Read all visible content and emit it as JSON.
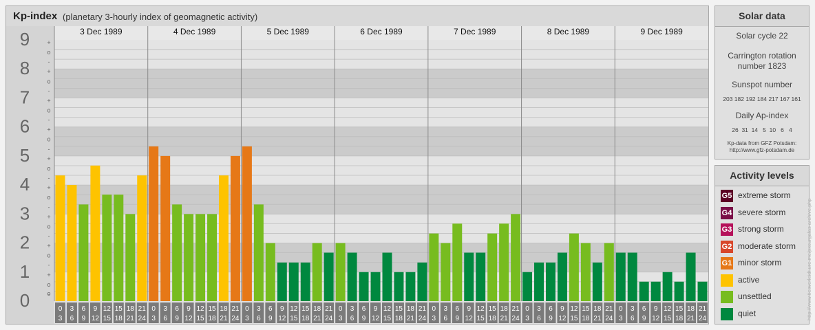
{
  "title": "Kp-index",
  "subtitle": "(planetary 3-hourly index of geomagnetic activity)",
  "chart_data": {
    "type": "bar",
    "y_range": [
      0,
      9
    ],
    "y_labels": [
      "0",
      "1",
      "2",
      "3",
      "4",
      "5",
      "6",
      "7",
      "8",
      "9"
    ],
    "y_minor_labels": [
      "+",
      "o",
      "-"
    ],
    "days": [
      "3 Dec 1989",
      "4 Dec 1989",
      "5 Dec 1989",
      "6 Dec 1989",
      "7 Dec 1989",
      "8 Dec 1989",
      "9 Dec 1989"
    ],
    "interval_top": [
      "0",
      "3",
      "6",
      "9",
      "12",
      "15",
      "18",
      "21"
    ],
    "interval_bottom": [
      "3",
      "6",
      "9",
      "12",
      "15",
      "18",
      "21",
      "24"
    ],
    "values": [
      [
        4.33,
        4.0,
        3.33,
        4.67,
        3.67,
        3.67,
        3.0,
        4.33
      ],
      [
        5.33,
        5.0,
        3.33,
        3.0,
        3.0,
        3.0,
        4.33,
        5.0
      ],
      [
        5.33,
        3.33,
        2.0,
        1.33,
        1.33,
        1.33,
        2.0,
        1.67
      ],
      [
        2.0,
        1.67,
        1.0,
        1.0,
        1.67,
        1.0,
        1.0,
        1.33
      ],
      [
        2.33,
        2.0,
        2.67,
        1.67,
        1.67,
        2.33,
        2.67,
        3.0
      ],
      [
        1.0,
        1.33,
        1.33,
        1.67,
        2.33,
        2.0,
        1.33,
        2.0
      ],
      [
        1.67,
        1.67,
        0.67,
        0.67,
        1.0,
        0.67,
        1.67,
        0.67
      ]
    ],
    "colors": {
      "quiet": "#00883f",
      "unsettled": "#77bc1f",
      "active": "#fec300",
      "minor": "#e67817"
    }
  },
  "solar": {
    "heading": "Solar data",
    "cycle": "Solar cycle 22",
    "carrington_line1": "Carrington rotation",
    "carrington_line2": "number 1823",
    "sunspot_heading": "Sunspot number",
    "sunspot_values": "203 182 192 184 217 167 161",
    "ap_heading": "Daily Ap-index",
    "ap_values": "26  31  14   5  10   6   4",
    "source_line1": "Kp-data from GFZ Potsdam:",
    "source_line2": "http://www.gfz-potsdam.de"
  },
  "activity": {
    "heading": "Activity levels",
    "levels": [
      {
        "badge": "G5",
        "label": "extreme storm",
        "color": "#5c0024"
      },
      {
        "badge": "G4",
        "label": "severe storm",
        "color": "#7a0f47"
      },
      {
        "badge": "G3",
        "label": "strong storm",
        "color": "#b5115a"
      },
      {
        "badge": "G2",
        "label": "moderate storm",
        "color": "#d8472b"
      },
      {
        "badge": "G1",
        "label": "minor storm",
        "color": "#e67817"
      },
      {
        "badge": "",
        "label": "active",
        "color": "#fec300"
      },
      {
        "badge": "",
        "label": "unsettled",
        "color": "#77bc1f"
      },
      {
        "badge": "",
        "label": "quiet",
        "color": "#00883f"
      }
    ]
  },
  "watermark": "http://www.tiesverleidt.ure.me/pxcurgafas archive.php"
}
